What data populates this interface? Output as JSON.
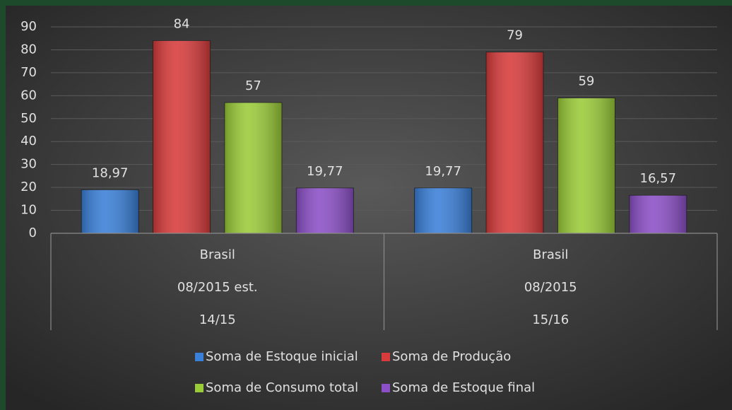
{
  "chart_data": {
    "type": "bar",
    "categories": [
      [
        "Brasil",
        "08/2015 est.",
        "14/15"
      ],
      [
        "Brasil",
        "08/2015",
        "15/16"
      ]
    ],
    "series": [
      {
        "name": "Soma de Estoque inicial",
        "color": "#3a7fd8",
        "values": [
          18.97,
          19.77
        ],
        "value_labels": [
          "18,97",
          "19,77"
        ]
      },
      {
        "name": "Soma de Produção",
        "color": "#d83b3b",
        "values": [
          84,
          79
        ]
      },
      {
        "name": "Soma de Consumo total",
        "color": "#9acb38",
        "values": [
          57,
          59
        ]
      },
      {
        "name": "Soma de Estoque final",
        "color": "#8b4fc6",
        "values": [
          19.77,
          16.57
        ],
        "value_labels": [
          "19,77",
          "16,57"
        ]
      }
    ],
    "ylim": [
      0,
      90
    ],
    "yticks": [
      0,
      10,
      20,
      30,
      40,
      50,
      60,
      70,
      80,
      90
    ],
    "grid": true
  }
}
